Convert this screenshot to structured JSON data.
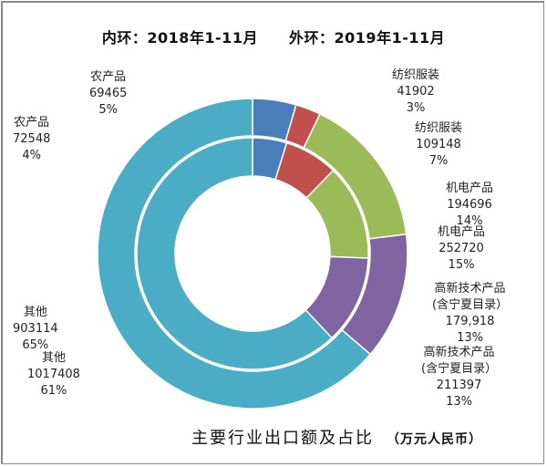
{
  "chart_data": {
    "type": "pie",
    "variant": "double-donut",
    "title": "主要行业出口额及占比",
    "unit": "（万元人民币）",
    "inner_ring_label": "内环：2018年1-11月",
    "outer_ring_label": "外环：2019年1-11月",
    "categories": [
      "农产品",
      "纺织服装",
      "机电产品",
      "高新技术产品(含宁夏目录)",
      "其他"
    ],
    "colors": [
      "#4a7ebb",
      "#c0504d",
      "#9bbb59",
      "#8064a2",
      "#4bacc6"
    ],
    "series": [
      {
        "name": "2018年1-11月",
        "ring": "inner",
        "values": [
          69465,
          109148,
          194696,
          179918,
          903114
        ],
        "value_labels": [
          "69465",
          "109148",
          "194696",
          "179,918",
          "903114"
        ],
        "percent_labels": [
          "5%",
          "7%",
          "14%",
          "13%",
          "65%"
        ]
      },
      {
        "name": "2019年1-11月",
        "ring": "outer",
        "values": [
          72548,
          41902,
          252720,
          211397,
          1017408
        ],
        "value_labels": [
          "72548",
          "41902",
          "252720",
          "211397",
          "1017408"
        ],
        "percent_labels": [
          "4%",
          "3%",
          "15%",
          "13%",
          "61%"
        ]
      }
    ],
    "label_lines": {
      "hightech_line1": "高新技术产品",
      "hightech_line2": "(含宁夏目录）"
    }
  }
}
